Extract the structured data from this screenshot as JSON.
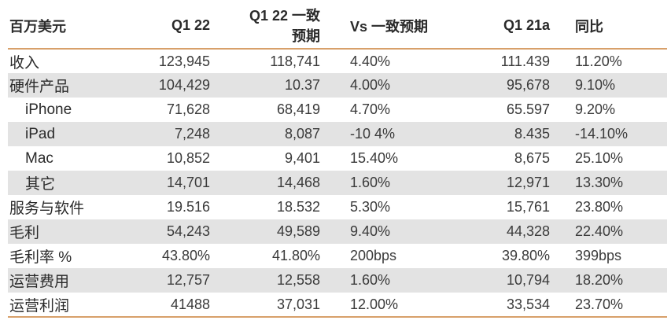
{
  "header": {
    "label": "百万美元",
    "q1_22": "Q1 22",
    "consensus_line1": "Q1 22 一致",
    "consensus_line2": "预期",
    "vs_consensus": "Vs 一致预期",
    "q1_21a": "Q1 21a",
    "yoy": "同比"
  },
  "rows": [
    {
      "label": "收入",
      "q1_22": "123,945",
      "consensus": "118,741",
      "vs": "4.40%",
      "q1_21a": "111.439",
      "yoy": "11.20%"
    },
    {
      "label": "硬件产品",
      "q1_22": "104,429",
      "consensus": "10.37",
      "vs": "4.00%",
      "q1_21a": "95,678",
      "yoy": "9.10%"
    },
    {
      "label": "iPhone",
      "q1_22": "71,628",
      "consensus": "68,419",
      "vs": "4.70%",
      "q1_21a": "65.597",
      "yoy": "9.20%"
    },
    {
      "label": "iPad",
      "q1_22": "7,248",
      "consensus": "8,087",
      "vs": "-10 4%",
      "q1_21a": "8.435",
      "yoy": "-14.10%"
    },
    {
      "label": "Mac",
      "q1_22": "10,852",
      "consensus": "9,401",
      "vs": "15.40%",
      "q1_21a": "8,675",
      "yoy": "25.10%"
    },
    {
      "label": "其它",
      "q1_22": "14,701",
      "consensus": "14,468",
      "vs": "1.60%",
      "q1_21a": "12,971",
      "yoy": "13.30%"
    },
    {
      "label": "服务与软件",
      "q1_22": "19.516",
      "consensus": "18.532",
      "vs": "5.30%",
      "q1_21a": "15,761",
      "yoy": "23.80%"
    },
    {
      "label": "毛利",
      "q1_22": "54,243",
      "consensus": "49,589",
      "vs": "9.40%",
      "q1_21a": "44,328",
      "yoy": "22.40%"
    },
    {
      "label": "毛利率 %",
      "q1_22": "43.80%",
      "consensus": "41.80%",
      "vs": "200bps",
      "q1_21a": "39.80%",
      "yoy": "399bps"
    },
    {
      "label": "运营费用",
      "q1_22": "12,757",
      "consensus": "12,558",
      "vs": "1.60%",
      "q1_21a": "10,794",
      "yoy": "18.20%"
    },
    {
      "label": "运营利润",
      "q1_22": "41488",
      "consensus": "37,031",
      "vs": "12.00%",
      "q1_21a": "33,534",
      "yoy": "23.70%"
    }
  ],
  "colors": {
    "row_shade": "#e3e3e3",
    "rule": "#d8a06a",
    "text": "#3a3a3a"
  }
}
